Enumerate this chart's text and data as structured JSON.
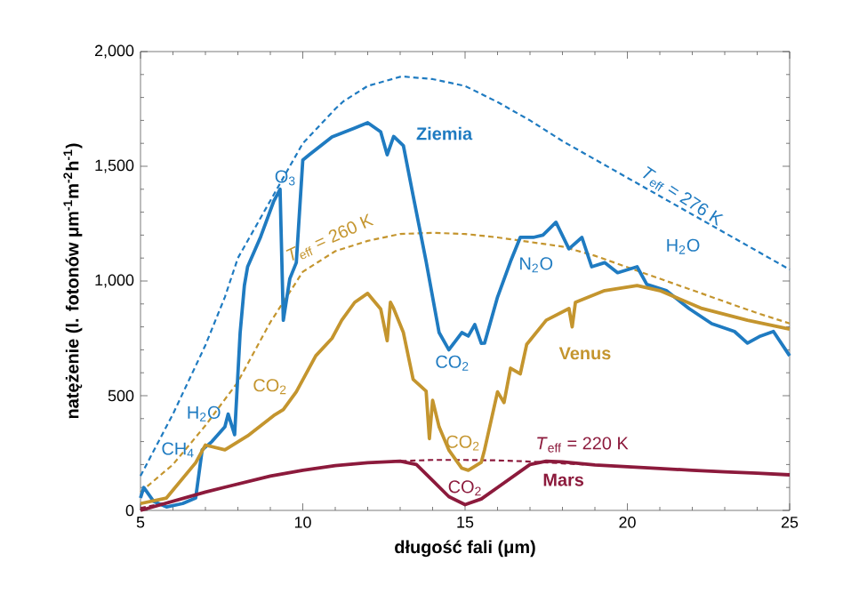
{
  "chart_data": {
    "type": "line",
    "xlabel": "długość fali (μm)",
    "ylabel": "natężenie (l. fotonów μm$^{-1}$m$^{-2}$h$^{-1}$)",
    "xlim": [
      5,
      25
    ],
    "ylim": [
      0,
      2000
    ],
    "xticks": [
      5,
      10,
      15,
      20,
      25
    ],
    "yticks": [
      {
        "value": 0,
        "label": "0"
      },
      {
        "value": 500,
        "label": "500"
      },
      {
        "value": 1000,
        "label": "1,000"
      },
      {
        "value": 1500,
        "label": "1,500"
      },
      {
        "value": 2000,
        "label": "2,000"
      }
    ],
    "grid": false,
    "marker": "none",
    "series": [
      {
        "color": "#1f7bc1",
        "line_style": "dashed",
        "x": [
          5,
          6,
          7,
          7.6,
          8,
          9,
          9.4,
          10,
          11,
          11.25,
          12,
          13,
          13.1,
          14,
          15,
          16,
          17,
          18,
          19,
          20,
          21,
          22,
          23,
          24,
          25
        ],
        "values": [
          150,
          420,
          720,
          930,
          1100,
          1350,
          1450,
          1600,
          1750,
          1783,
          1850,
          1890,
          1891,
          1880,
          1850,
          1780,
          1700,
          1610,
          1530,
          1450,
          1370,
          1290,
          1210,
          1130,
          1050
        ]
      },
      {
        "color": "#c4952e",
        "line_style": "dashed",
        "x": [
          5,
          6,
          7,
          8,
          9,
          10,
          11,
          12,
          13,
          14,
          15,
          16,
          17,
          18,
          19,
          20,
          21,
          22,
          23,
          24,
          25
        ],
        "values": [
          80,
          200,
          370,
          560,
          820,
          1040,
          1130,
          1175,
          1205,
          1210,
          1205,
          1190,
          1170,
          1150,
          1110,
          1060,
          1010,
          960,
          910,
          860,
          815
        ]
      },
      {
        "color": "#8c1a3c",
        "line_style": "dashed",
        "x": [
          5,
          6,
          7,
          8,
          9,
          10,
          11,
          12,
          13,
          14,
          15,
          16,
          17,
          18,
          19,
          20,
          21,
          22,
          23,
          24,
          25
        ],
        "values": [
          10,
          40,
          80,
          115,
          150,
          175,
          195,
          208,
          215,
          220,
          220,
          218,
          213,
          205,
          198,
          190,
          183,
          175,
          168,
          162,
          155
        ]
      },
      {
        "color": "#1f7bc1",
        "line_style": "solid",
        "x": [
          5,
          5.1,
          5.4,
          5.8,
          6.3,
          6.7,
          6.9,
          7.2,
          7.6,
          7.7,
          7.9,
          8.07,
          8.2,
          8.3,
          8.7,
          9.1,
          9.3,
          9.4,
          9.6,
          9.8,
          10.0,
          10.2,
          10.9,
          11.6,
          12.0,
          12.4,
          12.6,
          12.8,
          13.1,
          13.4,
          13.8,
          14.2,
          14.5,
          14.9,
          15.1,
          15.3,
          15.5,
          15.6,
          16.0,
          16.4,
          16.7,
          17.1,
          17.4,
          17.8,
          18.2,
          18.6,
          18.9,
          19.3,
          19.7,
          20.3,
          20.6,
          21.2,
          21.9,
          22.6,
          23.3,
          23.7,
          24.1,
          24.5,
          25
        ],
        "values": [
          54,
          100,
          40,
          15,
          30,
          54,
          264,
          300,
          364,
          420,
          330,
          775,
          980,
          1062,
          1192,
          1346,
          1400,
          829,
          1010,
          1080,
          1527,
          1550,
          1628,
          1667,
          1690,
          1650,
          1550,
          1630,
          1590,
          1372,
          1085,
          775,
          700,
          775,
          760,
          810,
          728,
          729,
          930,
          1085,
          1190,
          1190,
          1200,
          1256,
          1140,
          1190,
          1062,
          1080,
          1036,
          1062,
          985,
          958,
          880,
          814,
          780,
          729,
          760,
          780,
          674
        ]
      },
      {
        "color": "#c4952e",
        "line_style": "solid",
        "x": [
          5,
          5.8,
          6.7,
          7.0,
          7.6,
          8.3,
          9.1,
          9.4,
          9.8,
          10.4,
          10.9,
          11.2,
          11.6,
          12.0,
          12.4,
          12.6,
          12.7,
          12.8,
          13.1,
          13.4,
          13.8,
          13.9,
          14.0,
          14.2,
          14.5,
          14.9,
          15.1,
          15.5,
          15.6,
          16.0,
          16.2,
          16.4,
          16.7,
          16.9,
          17.5,
          18.2,
          18.3,
          18.4,
          19.3,
          20.3,
          21.0,
          22.3,
          23.7,
          25
        ],
        "values": [
          30,
          54,
          208,
          285,
          264,
          325,
          413,
          439,
          517,
          674,
          750,
          829,
          907,
          946,
          878,
          740,
          907,
          880,
          775,
          571,
          520,
          313,
          480,
          364,
          263,
          184,
          175,
          210,
          264,
          517,
          470,
          620,
          595,
          724,
          829,
          880,
          800,
          907,
          958,
          980,
          958,
          880,
          829,
          790
        ]
      },
      {
        "color": "#8c1a3c",
        "line_style": "solid",
        "x": [
          5,
          6,
          7,
          8,
          9,
          10,
          11,
          12,
          13,
          13.5,
          14,
          14.5,
          15,
          15.5,
          16,
          16.5,
          17,
          17.5,
          18,
          19,
          20,
          21,
          22,
          23,
          24,
          25
        ],
        "values": [
          0,
          40,
          80,
          115,
          150,
          175,
          195,
          208,
          215,
          200,
          130,
          60,
          25,
          50,
          100,
          150,
          200,
          215,
          212,
          198,
          190,
          183,
          175,
          168,
          162,
          155
        ]
      }
    ],
    "annotations": [
      {
        "text": "Ziemia",
        "x": 13.1,
        "y": 1590
      },
      {
        "text": "O$_{3}$",
        "x": 9.3,
        "y": 1400
      },
      {
        "text": "*T*$_{eff}$ = 260 K",
        "x": 11,
        "y": 1130
      },
      {
        "text": "CO$_{2}$",
        "x": 9.1,
        "y": 413
      },
      {
        "text": "H$_{2}$O",
        "x": 7.6,
        "y": 364
      },
      {
        "text": "CH$_{4}$",
        "x": 6.9,
        "y": 264
      },
      {
        "text": "CO$_{2}$",
        "x": 14.5,
        "y": 700
      },
      {
        "text": "CO$_{2}$",
        "x": 15.1,
        "y": 175
      },
      {
        "text": "CO$_{2}$",
        "x": 15,
        "y": 25
      },
      {
        "text": "*T*$_{eff}$ = 220 K",
        "x": 17,
        "y": 213
      },
      {
        "text": "Mars",
        "x": 17,
        "y": 200
      },
      {
        "text": "Venus",
        "x": 17.5,
        "y": 829
      },
      {
        "text": "N$_{2}$O",
        "x": 16.7,
        "y": 1190
      },
      {
        "text": "H$_{2}$O",
        "x": 20.3,
        "y": 1062
      },
      {
        "text": "*T*$_{eff}$ = 276 K",
        "x": 20,
        "y": 1450
      }
    ]
  }
}
